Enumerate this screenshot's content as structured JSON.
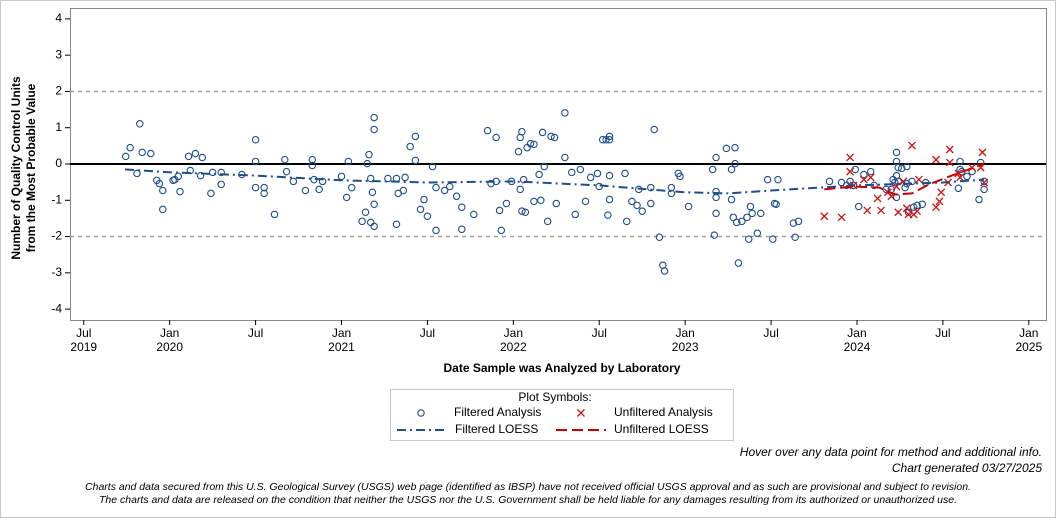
{
  "chart_data": {
    "type": "scatter",
    "y_label": [
      "Number of Quality Control Units",
      "from the Most Probable Value"
    ],
    "x_label": "Date Sample was Analyzed by Laboratory",
    "xlim": [
      2019.42,
      2025.1
    ],
    "ylim": [
      -4.3,
      4.3
    ],
    "yticks": [
      -4,
      -3,
      -2,
      -1,
      0,
      1,
      2,
      3,
      4
    ],
    "xticks": [
      {
        "value": 2019.5,
        "label": "Jul\n2019"
      },
      {
        "value": 2020.0,
        "label": "Jan\n2020"
      },
      {
        "value": 2020.5,
        "label": "Jul"
      },
      {
        "value": 2021.0,
        "label": "Jan\n2021"
      },
      {
        "value": 2021.5,
        "label": "Jul"
      },
      {
        "value": 2022.0,
        "label": "Jan\n2022"
      },
      {
        "value": 2022.5,
        "label": "Jul"
      },
      {
        "value": 2023.0,
        "label": "Jan\n2023"
      },
      {
        "value": 2023.5,
        "label": "Jul"
      },
      {
        "value": 2024.0,
        "label": "Jan\n2024"
      },
      {
        "value": 2024.5,
        "label": "Jul"
      },
      {
        "value": 2025.0,
        "label": "Jan\n2025"
      }
    ],
    "reference_lines": [
      {
        "value": 2,
        "color": "#a0a0a0",
        "style": "dashed"
      },
      {
        "value": 0,
        "color": "#000000",
        "style": "solid"
      },
      {
        "value": -2,
        "color": "#a0a0a0",
        "style": "dashed"
      }
    ],
    "legend_title": "Plot Symbols:",
    "series": [
      {
        "name": "Filtered Analysis",
        "color": "#1f4e8c",
        "mode": "markers",
        "marker": "circle",
        "x": [
          2019.744,
          2019.77,
          2019.81,
          2019.826,
          2019.84,
          2019.89,
          2019.925,
          2019.94,
          2019.96,
          2019.96,
          2020.02,
          2020.03,
          2020.05,
          2020.06,
          2020.11,
          2020.12,
          2020.15,
          2020.18,
          2020.19,
          2020.24,
          2020.25,
          2020.3,
          2020.3,
          2020.42,
          2020.5,
          2020.5,
          2020.5,
          2020.55,
          2020.55,
          2020.61,
          2020.67,
          2020.68,
          2020.72,
          2020.79,
          2020.83,
          2020.83,
          2020.84,
          2020.87,
          2020.89,
          2021.0,
          2021.03,
          2021.04,
          2021.06,
          2021.12,
          2021.14,
          2021.16,
          2021.15,
          2021.17,
          2021.18,
          2021.17,
          2021.19,
          2021.19,
          2021.19,
          2021.19,
          2021.27,
          2021.32,
          2021.32,
          2021.33,
          2021.36,
          2021.37,
          2021.4,
          2021.43,
          2021.43,
          2021.46,
          2021.48,
          2021.5,
          2021.53,
          2021.55,
          2021.55,
          2021.6,
          2021.63,
          2021.67,
          2021.7,
          2021.7,
          2021.77,
          2021.85,
          2021.87,
          2021.9,
          2021.9,
          2021.92,
          2021.93,
          2021.96,
          2021.99,
          2022.03,
          2022.04,
          2022.05,
          2022.04,
          2022.05,
          2022.06,
          2022.07,
          2022.08,
          2022.1,
          2022.12,
          2022.12,
          2022.15,
          2022.16,
          2022.17,
          2022.18,
          2022.2,
          2022.22,
          2022.24,
          2022.25,
          2022.3,
          2022.3,
          2022.34,
          2022.36,
          2022.39,
          2022.42,
          2022.45,
          2022.5,
          2022.49,
          2022.52,
          2022.54,
          2022.56,
          2022.56,
          2022.56,
          2022.55,
          2022.56,
          2022.65,
          2022.66,
          2022.69,
          2022.72,
          2022.73,
          2022.75,
          2022.8,
          2022.8,
          2022.82,
          2022.85,
          2022.87,
          2022.88,
          2022.92,
          2022.92,
          2022.96,
          2022.97,
          2023.02,
          2023.16,
          2023.17,
          2023.18,
          2023.18,
          2023.18,
          2023.18,
          2023.24,
          2023.27,
          2023.27,
          2023.28,
          2023.29,
          2023.29,
          2023.3,
          2023.31,
          2023.33,
          2023.36,
          2023.38,
          2023.37,
          2023.39,
          2023.42,
          2023.44,
          2023.48,
          2023.52,
          2023.53,
          2023.54,
          2023.51,
          2023.63,
          2023.64,
          2023.66,
          2023.84,
          2023.91,
          2023.94,
          2023.96,
          2023.98,
          2023.99,
          2024.01,
          2024.04,
          2024.08,
          2024.1,
          2024.17,
          2024.2,
          2024.21,
          2024.22,
          2024.23,
          2024.23,
          2024.23,
          2024.23,
          2024.24,
          2024.24,
          2024.26,
          2024.28,
          2024.29,
          2024.29,
          2024.3,
          2024.32,
          2024.33,
          2024.35,
          2024.38,
          2024.4,
          2024.59,
          2024.6,
          2024.61,
          2024.64,
          2024.67,
          2024.71,
          2024.6,
          2024.72,
          2024.74,
          2024.74
        ],
        "values": [
          0.21,
          0.45,
          -0.26,
          1.11,
          0.32,
          0.29,
          -0.45,
          -0.54,
          -0.73,
          -1.25,
          -0.45,
          -0.43,
          -0.34,
          -0.76,
          0.21,
          -0.18,
          0.29,
          -0.32,
          0.18,
          -0.81,
          -0.23,
          -0.23,
          -0.56,
          -0.29,
          0.67,
          0.07,
          -0.65,
          -0.65,
          -0.81,
          -1.39,
          0.12,
          -0.21,
          -0.48,
          -0.73,
          0.12,
          -0.04,
          -0.43,
          -0.7,
          -0.48,
          -0.34,
          -0.92,
          0.07,
          -0.65,
          -1.58,
          -1.33,
          0.26,
          0.01,
          -0.4,
          -0.78,
          -1.61,
          -1.72,
          1.28,
          0.95,
          -1.11,
          -0.4,
          -0.4,
          -1.66,
          -0.81,
          -0.73,
          -0.37,
          0.48,
          0.76,
          0.1,
          -1.25,
          -0.98,
          -1.44,
          -0.07,
          -0.65,
          -1.83,
          -0.73,
          -0.62,
          -0.89,
          -1.19,
          -1.8,
          -1.39,
          0.92,
          -0.54,
          0.73,
          -0.48,
          -1.28,
          -1.83,
          -1.09,
          -0.48,
          0.34,
          0.73,
          0.89,
          -0.7,
          -1.3,
          -0.43,
          -1.33,
          0.45,
          0.56,
          0.54,
          -1.03,
          -0.29,
          -1.0,
          0.87,
          -0.07,
          -1.58,
          0.76,
          0.73,
          -1.09,
          1.41,
          0.18,
          -0.23,
          -1.39,
          -0.15,
          -1.03,
          -0.37,
          -0.62,
          -0.26,
          0.67,
          0.67,
          0.76,
          0.67,
          -0.32,
          -1.41,
          -0.98,
          -0.26,
          -1.58,
          -1.03,
          -1.14,
          -0.7,
          -1.3,
          -1.09,
          -0.65,
          0.95,
          -2.02,
          -2.79,
          -2.95,
          -0.81,
          -0.65,
          -0.26,
          -0.34,
          -1.17,
          -0.15,
          -1.96,
          -0.76,
          -1.36,
          0.18,
          -0.92,
          0.43,
          -0.15,
          -0.98,
          -1.47,
          0.45,
          0.01,
          -1.61,
          -2.73,
          -1.58,
          -1.47,
          -1.17,
          -2.07,
          -1.36,
          -1.91,
          -1.36,
          -0.43,
          -1.09,
          -1.11,
          -0.43,
          -2.07,
          -1.63,
          -2.02,
          -1.58,
          -0.48,
          -0.51,
          -0.59,
          -0.48,
          -0.59,
          -0.15,
          -1.17,
          -0.29,
          -0.21,
          -0.59,
          -0.7,
          -0.7,
          -0.43,
          -0.51,
          0.32,
          0.07,
          -0.92,
          -0.32,
          -0.1,
          -0.48,
          -0.12,
          -0.65,
          -0.07,
          -0.54,
          -1.33,
          -0.48,
          -1.19,
          -1.14,
          -1.11,
          -0.51,
          -0.67,
          -0.15,
          -0.21,
          -0.34,
          -0.21,
          -0.98,
          0.07,
          0.04,
          -0.7,
          -0.48
        ]
      },
      {
        "name": "Unfiltered Analysis",
        "color": "#d01010",
        "mode": "markers",
        "marker": "x",
        "x": [
          2023.81,
          2023.91,
          2023.96,
          2023.96,
          2023.98,
          2024.04,
          2024.06,
          2024.08,
          2024.12,
          2024.14,
          2024.18,
          2024.2,
          2024.23,
          2024.24,
          2024.27,
          2024.29,
          2024.3,
          2024.32,
          2024.33,
          2024.35,
          2024.36,
          2024.46,
          2024.46,
          2024.48,
          2024.49,
          2024.53,
          2024.54,
          2024.54,
          2024.59,
          2024.6,
          2024.67,
          2024.72,
          2024.73,
          2024.74
        ],
        "values": [
          -1.44,
          -1.47,
          -0.21,
          0.18,
          -0.59,
          -0.43,
          -1.28,
          -0.37,
          -0.95,
          -1.28,
          -0.78,
          -0.89,
          -0.62,
          -1.33,
          -0.48,
          -1.22,
          -1.39,
          0.51,
          -1.39,
          -1.3,
          -0.43,
          0.12,
          -1.19,
          -1.03,
          -0.78,
          -0.51,
          0.4,
          0.04,
          -0.26,
          -0.37,
          -0.1,
          -0.1,
          0.32,
          -0.51
        ]
      },
      {
        "name": "Filtered LOESS",
        "color": "#1f4e8c",
        "mode": "line",
        "dash": "9 4 2 4",
        "x": [
          2019.74,
          2020.0,
          2020.5,
          2021.0,
          2021.5,
          2022.0,
          2022.5,
          2023.0,
          2023.25,
          2023.5,
          2024.0,
          2024.5,
          2024.74
        ],
        "values": [
          -0.15,
          -0.23,
          -0.32,
          -0.45,
          -0.51,
          -0.48,
          -0.59,
          -0.78,
          -0.81,
          -0.73,
          -0.59,
          -0.51,
          -0.43
        ]
      },
      {
        "name": "Unfiltered LOESS",
        "color": "#cc0000",
        "mode": "line",
        "dash": "11 5",
        "x": [
          2023.81,
          2023.98,
          2024.13,
          2024.22,
          2024.32,
          2024.42,
          2024.54,
          2024.65,
          2024.74
        ],
        "values": [
          -0.7,
          -0.62,
          -0.65,
          -0.84,
          -0.81,
          -0.56,
          -0.34,
          -0.15,
          0.01
        ]
      }
    ]
  },
  "notes": {
    "hover": "Hover over any data point for method and additional info.",
    "generated": "Chart generated 03/27/2025",
    "disclaimer": [
      "Charts and data secured from this U.S. Geological Survey (USGS) web page (identified as IBSP) have not received official USGS approval and as such are provisional and subject to revision.",
      "The charts and data are released on the condition that neither the USGS nor the U.S. Government shall be held liable for any damages resulting from its authorized or unauthorized use."
    ]
  }
}
